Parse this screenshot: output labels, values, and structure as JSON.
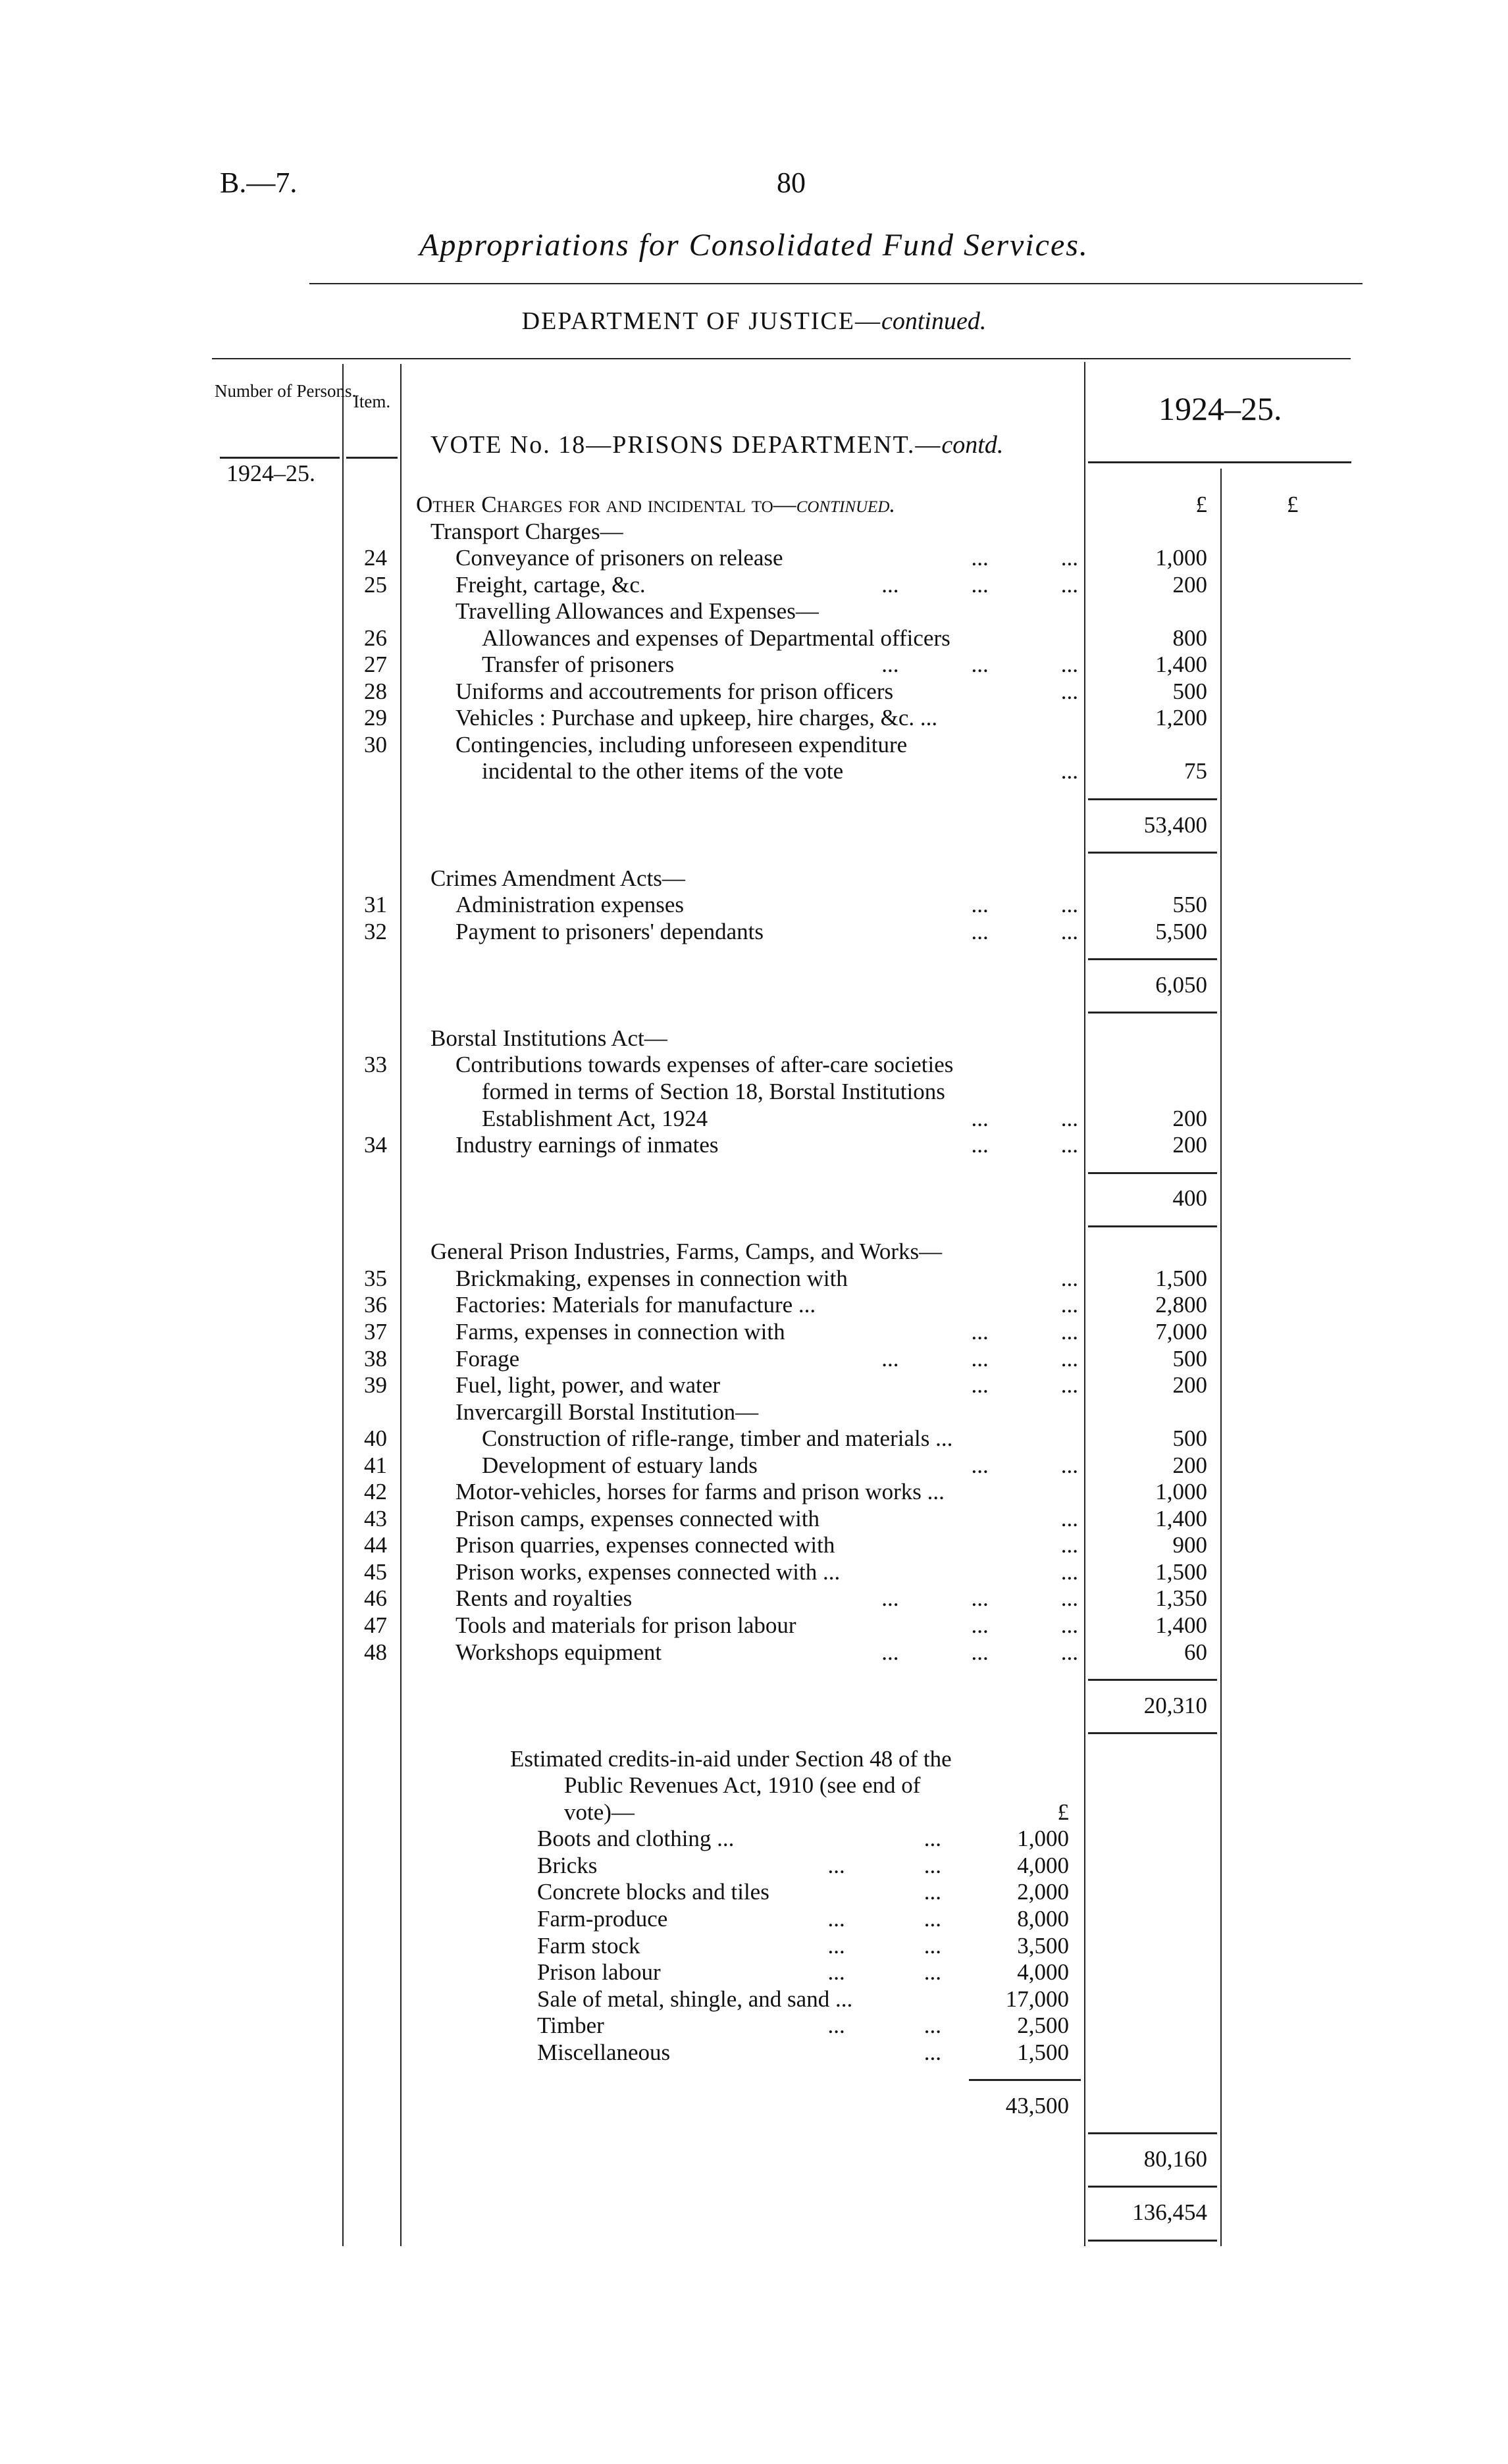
{
  "header": {
    "report_ref": "B.—7.",
    "page_number": "80",
    "title": "Appropriations for Consolidated Fund Services.",
    "department": "DEPARTMENT OF JUSTICE—",
    "department_suffix": "continued."
  },
  "table_header": {
    "number_of_persons": "Number of Persons.",
    "item": "Item.",
    "year": "1924–25.",
    "persons_year": "1924–25.",
    "vote_title": "VOTE No. 18—PRISONS DEPARTMENT.—",
    "vote_suffix": "contd."
  },
  "rows": [
    {
      "text": "Other Charges for and incidental to—",
      "suffix": "continued.",
      "indent": 0,
      "smallcaps": true,
      "amount": "£",
      "col2": "£"
    },
    {
      "text": "Transport Charges—",
      "indent": 1
    },
    {
      "item": "24",
      "text": "Conveyance of prisoners on release",
      "indent": 2,
      "leaders": [
        "...",
        "..."
      ],
      "amount": "1,000"
    },
    {
      "item": "25",
      "text": "Freight, cartage, &c.",
      "indent": 2,
      "leaders": [
        "...",
        "...",
        "..."
      ],
      "amount": "200"
    },
    {
      "text": "Travelling Allowances and Expenses—",
      "indent": 2
    },
    {
      "item": "26",
      "text": "Allowances and expenses of Departmental officers",
      "indent": 3,
      "amount": "800"
    },
    {
      "item": "27",
      "text": "Transfer of prisoners",
      "indent": 3,
      "leaders": [
        "...",
        "...",
        "..."
      ],
      "amount": "1,400"
    },
    {
      "item": "28",
      "text": "Uniforms and accoutrements for prison officers",
      "indent": 2,
      "leaders": [
        "..."
      ],
      "amount": "500"
    },
    {
      "item": "29",
      "text": "Vehicles : Purchase and upkeep, hire charges, &c. ...",
      "indent": 2,
      "amount": "1,200"
    },
    {
      "item": "30",
      "text": "Contingencies, including unforeseen expenditure",
      "indent": 2
    },
    {
      "text": "incidental to the other items of the vote",
      "indent": 3,
      "leaders": [
        "..."
      ],
      "amount": "75"
    },
    {
      "rule": "amount"
    },
    {
      "amount": "53,400"
    },
    {
      "rule": "amount"
    },
    {
      "text": "Crimes Amendment Acts—",
      "indent": 1
    },
    {
      "item": "31",
      "text": "Administration expenses",
      "indent": 2,
      "leaders": [
        "...",
        "..."
      ],
      "amount": "550"
    },
    {
      "item": "32",
      "text": "Payment to prisoners' dependants",
      "indent": 2,
      "leaders": [
        "...",
        "..."
      ],
      "amount": "5,500"
    },
    {
      "rule": "amount"
    },
    {
      "amount": "6,050"
    },
    {
      "rule": "amount"
    },
    {
      "text": "Borstal Institutions Act—",
      "indent": 1
    },
    {
      "item": "33",
      "text": "Contributions towards expenses of after-care societies",
      "indent": 2
    },
    {
      "text": "formed in terms of Section 18, Borstal Institutions",
      "indent": 3
    },
    {
      "text": "Establishment Act, 1924",
      "indent": 3,
      "leaders": [
        "...",
        "..."
      ],
      "amount": "200"
    },
    {
      "item": "34",
      "text": "Industry earnings of inmates",
      "indent": 2,
      "leaders": [
        "...",
        "..."
      ],
      "amount": "200"
    },
    {
      "rule": "amount"
    },
    {
      "amount": "400"
    },
    {
      "rule": "amount"
    },
    {
      "text": "General Prison Industries, Farms, Camps, and Works—",
      "indent": 1
    },
    {
      "item": "35",
      "text": "Brickmaking, expenses in connection with",
      "indent": 2,
      "leaders": [
        "..."
      ],
      "amount": "1,500"
    },
    {
      "item": "36",
      "text": "Factories: Materials for manufacture ...",
      "indent": 2,
      "leaders": [
        "..."
      ],
      "amount": "2,800"
    },
    {
      "item": "37",
      "text": "Farms, expenses in connection with",
      "indent": 2,
      "leaders": [
        "...",
        "..."
      ],
      "amount": "7,000"
    },
    {
      "item": "38",
      "text": "Forage",
      "indent": 2,
      "leaders": [
        "...",
        "...",
        "..."
      ],
      "amount": "500"
    },
    {
      "item": "39",
      "text": "Fuel, light, power, and water",
      "indent": 2,
      "leaders": [
        "...",
        "..."
      ],
      "amount": "200"
    },
    {
      "text": "Invercargill Borstal Institution—",
      "indent": 2
    },
    {
      "item": "40",
      "text": "Construction of rifle-range, timber and materials ...",
      "indent": 3,
      "amount": "500"
    },
    {
      "item": "41",
      "text": "Development of estuary lands",
      "indent": 3,
      "leaders": [
        "...",
        "..."
      ],
      "amount": "200"
    },
    {
      "item": "42",
      "text": "Motor-vehicles, horses for farms and prison works ...",
      "indent": 2,
      "amount": "1,000"
    },
    {
      "item": "43",
      "text": "Prison camps, expenses connected with",
      "indent": 2,
      "leaders": [
        "..."
      ],
      "amount": "1,400"
    },
    {
      "item": "44",
      "text": "Prison quarries, expenses connected with",
      "indent": 2,
      "leaders": [
        "..."
      ],
      "amount": "900"
    },
    {
      "item": "45",
      "text": "Prison works, expenses connected with ...",
      "indent": 2,
      "leaders": [
        "..."
      ],
      "amount": "1,500"
    },
    {
      "item": "46",
      "text": "Rents and royalties",
      "indent": 2,
      "leaders": [
        "...",
        "...",
        "..."
      ],
      "amount": "1,350"
    },
    {
      "item": "47",
      "text": "Tools and materials for prison labour",
      "indent": 2,
      "leaders": [
        "...",
        "..."
      ],
      "amount": "1,400"
    },
    {
      "item": "48",
      "text": "Workshops equipment",
      "indent": 2,
      "leaders": [
        "...",
        "...",
        "..."
      ],
      "amount": "60"
    },
    {
      "rule": "amount"
    },
    {
      "amount": "20,310"
    },
    {
      "rule": "amount"
    },
    {
      "text": "Estimated credits-in-aid under Section 48 of the",
      "indent": 4
    },
    {
      "text": "Public Revenues Act, 1910 (see end of",
      "indent": 6
    },
    {
      "text": "vote)—",
      "indent": 6,
      "sub": "£"
    },
    {
      "text": "Boots and clothing ...",
      "indent": 5,
      "cleaders": [
        "..."
      ],
      "sub": "1,000"
    },
    {
      "text": "Bricks",
      "indent": 5,
      "cleaders": [
        "...",
        "..."
      ],
      "sub": "4,000"
    },
    {
      "text": "Concrete blocks and tiles",
      "indent": 5,
      "cleaders": [
        "..."
      ],
      "sub": "2,000"
    },
    {
      "text": "Farm-produce",
      "indent": 5,
      "cleaders": [
        "...",
        "..."
      ],
      "sub": "8,000"
    },
    {
      "text": "Farm stock",
      "indent": 5,
      "cleaders": [
        "...",
        "..."
      ],
      "sub": "3,500"
    },
    {
      "text": "Prison labour",
      "indent": 5,
      "cleaders": [
        "...",
        "..."
      ],
      "sub": "4,000"
    },
    {
      "text": "Sale of metal, shingle, and sand ...",
      "indent": 5,
      "sub": "17,000"
    },
    {
      "text": "Timber",
      "indent": 5,
      "cleaders": [
        "...",
        "..."
      ],
      "sub": "2,500"
    },
    {
      "text": "Miscellaneous",
      "indent": 5,
      "cleaders": [
        "..."
      ],
      "sub": "1,500"
    },
    {
      "rule": "sub"
    },
    {
      "sub": "43,500"
    },
    {
      "rule": "amount"
    },
    {
      "amount": "80,160"
    },
    {
      "rule": "amount"
    },
    {
      "amount": "136,454"
    },
    {
      "rule": "amount"
    }
  ]
}
